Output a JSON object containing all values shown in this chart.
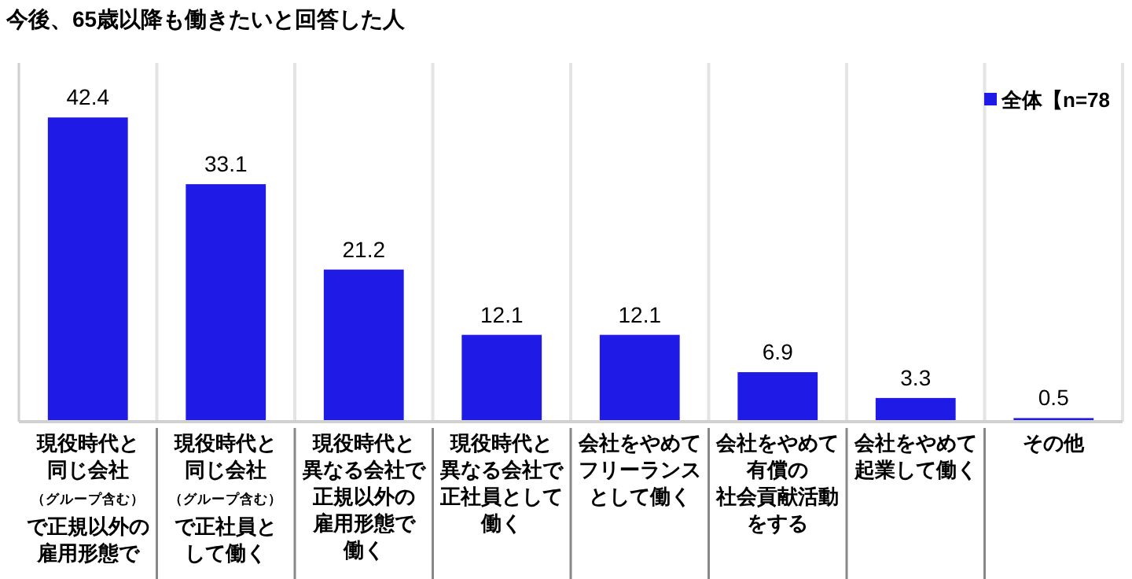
{
  "chart_data": {
    "type": "bar",
    "title": "今後、65歳以降も働きたいと回答した人",
    "categories": [
      "現役時代と同じ会社（グループ含む）で正規以外の雇用形態で",
      "現役時代と同じ会社（グループ含む）で正社員として働く",
      "現役時代と異なる会社で正規以外の雇用形態で働く",
      "現役時代と異なる会社で正社員として働く",
      "会社をやめてフリーランスとして働く",
      "会社をやめて有償の社会貢献活動をする",
      "会社をやめて起業して働く",
      "その他"
    ],
    "series": [
      {
        "name": "全体【n=78",
        "color": "#1f1ae6",
        "values": [
          42.4,
          33.1,
          21.2,
          12.1,
          12.1,
          6.9,
          3.3,
          0.5
        ]
      }
    ],
    "ylim": [
      0,
      50
    ],
    "data_labels": true,
    "legend": "top right",
    "grid": "x"
  }
}
